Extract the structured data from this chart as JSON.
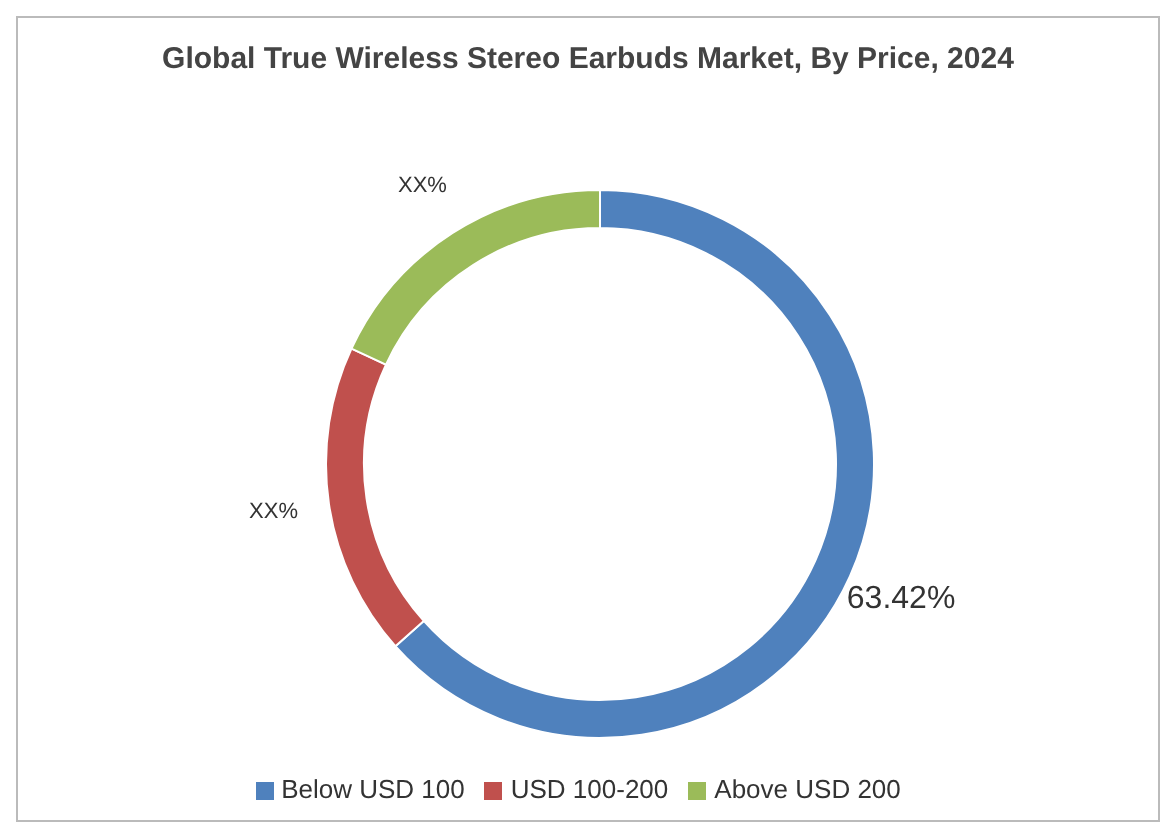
{
  "chart_data": {
    "type": "donut",
    "title": "Global True Wireless Stereo Earbuds Market, By Price, 2024",
    "categories": [
      "Below USD 100",
      "USD 100-200",
      "Above USD 200"
    ],
    "values": [
      63.42,
      18.5,
      18.08
    ],
    "colors": [
      "#4f81bd",
      "#c0504d",
      "#9bbb59"
    ],
    "value_labels": [
      "63.42%",
      "XX%",
      "XX%"
    ],
    "legend": "bottom"
  }
}
